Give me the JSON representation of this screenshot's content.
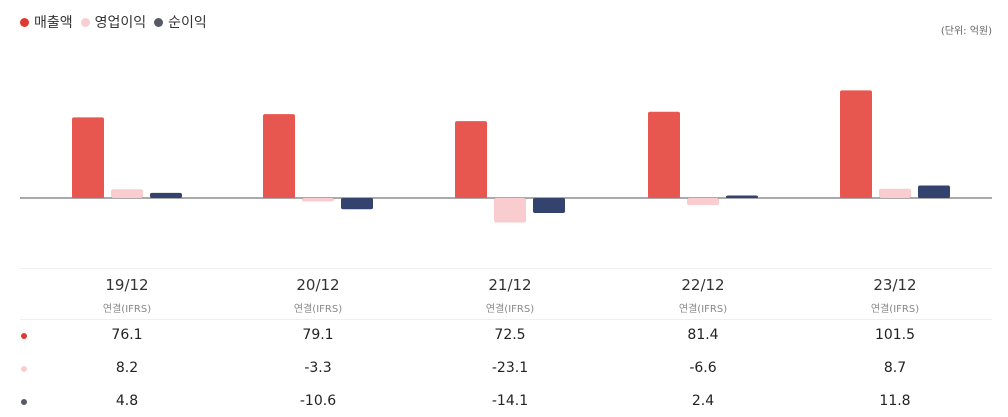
{
  "unit_label": "(단위: 억원)",
  "colors": {
    "sales": "#e8574f",
    "op": "#f9cdd0",
    "net": "#34426e",
    "axis": "#555555"
  },
  "chart_data": {
    "type": "bar",
    "categories": [
      "19/12",
      "20/12",
      "21/12",
      "22/12",
      "23/12"
    ],
    "category_sublabel": "연결(IFRS)",
    "series": [
      {
        "name": "매출액",
        "values": [
          76.1,
          79.1,
          72.5,
          81.4,
          101.5
        ]
      },
      {
        "name": "영업이익",
        "values": [
          8.2,
          -3.3,
          -23.1,
          -6.6,
          8.7
        ]
      },
      {
        "name": "순이익",
        "values": [
          4.8,
          -10.6,
          -14.1,
          2.4,
          11.8
        ]
      }
    ]
  },
  "table": {
    "rows": [
      [
        "76.1",
        "79.1",
        "72.5",
        "81.4",
        "101.5"
      ],
      [
        "8.2",
        "-3.3",
        "-23.1",
        "-6.6",
        "8.7"
      ],
      [
        "4.8",
        "-10.6",
        "-14.1",
        "2.4",
        "11.8"
      ]
    ]
  }
}
